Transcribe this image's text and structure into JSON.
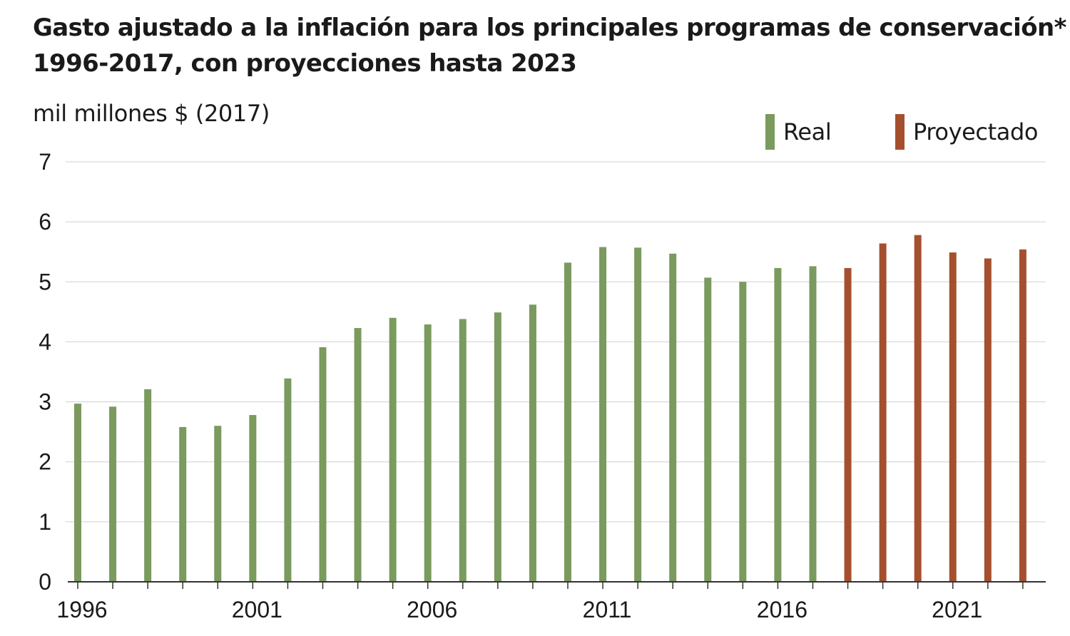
{
  "header": {
    "title_line1": "Gasto ajustado a la inflación para los principales programas de conservación*",
    "title_line2": "1996-2017, con proyecciones hasta 2023",
    "unit_label": "mil millones $ (2017)"
  },
  "legend": {
    "real_label": "Real",
    "projected_label": "Proyectado"
  },
  "colors": {
    "real": "#7a9a5e",
    "projected": "#a4502f",
    "grid": "#d0d0d0",
    "axis": "#333333"
  },
  "chart_data": {
    "type": "bar",
    "categories": [
      "1996",
      "1997",
      "1998",
      "1999",
      "2000",
      "2001",
      "2002",
      "2003",
      "2004",
      "2005",
      "2006",
      "2007",
      "2008",
      "2009",
      "2010",
      "2011",
      "2012",
      "2013",
      "2014",
      "2015",
      "2016",
      "2017",
      "2018",
      "2019",
      "2020",
      "2021",
      "2022",
      "2023"
    ],
    "series": [
      {
        "name": "Real",
        "values": [
          2.97,
          2.92,
          3.21,
          2.58,
          2.6,
          2.78,
          3.39,
          3.91,
          4.23,
          4.4,
          4.29,
          4.38,
          4.49,
          4.62,
          5.32,
          5.58,
          5.57,
          5.47,
          5.07,
          5.0,
          5.23,
          5.26,
          null,
          null,
          null,
          null,
          null,
          null
        ]
      },
      {
        "name": "Proyectado",
        "values": [
          null,
          null,
          null,
          null,
          null,
          null,
          null,
          null,
          null,
          null,
          null,
          null,
          null,
          null,
          null,
          null,
          null,
          null,
          null,
          null,
          null,
          null,
          5.23,
          5.64,
          5.78,
          5.49,
          5.39,
          5.54
        ]
      }
    ],
    "ylim": [
      0,
      7
    ],
    "yticks": [
      "0",
      "1",
      "2",
      "3",
      "4",
      "5",
      "6",
      "7"
    ],
    "xtick_labels": [
      "1996",
      "2001",
      "2006",
      "2011",
      "2016",
      "2021"
    ],
    "grid": true,
    "legend_position": "top-right"
  }
}
